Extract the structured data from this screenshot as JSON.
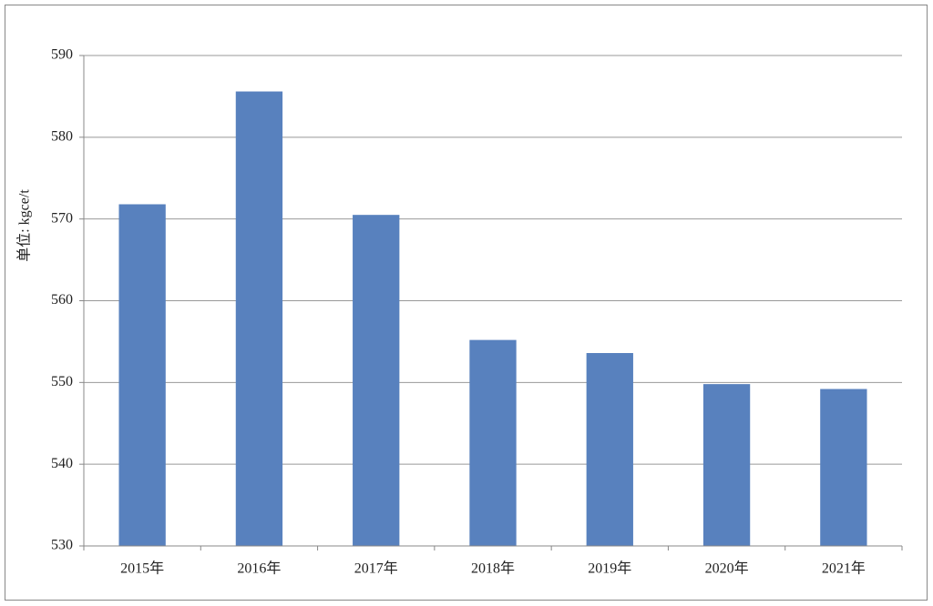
{
  "chart_data": {
    "type": "bar",
    "y_label": "单位: kgce/t",
    "categories": [
      "2015年",
      "2016年",
      "2017年",
      "2018年",
      "2019年",
      "2020年",
      "2021年"
    ],
    "values": [
      571.8,
      585.6,
      570.5,
      555.2,
      553.6,
      549.8,
      549.2
    ],
    "color": "#5881be",
    "ylim": [
      530,
      590
    ],
    "yticks": [
      530,
      540,
      550,
      560,
      570,
      580,
      590
    ],
    "grid": true
  }
}
